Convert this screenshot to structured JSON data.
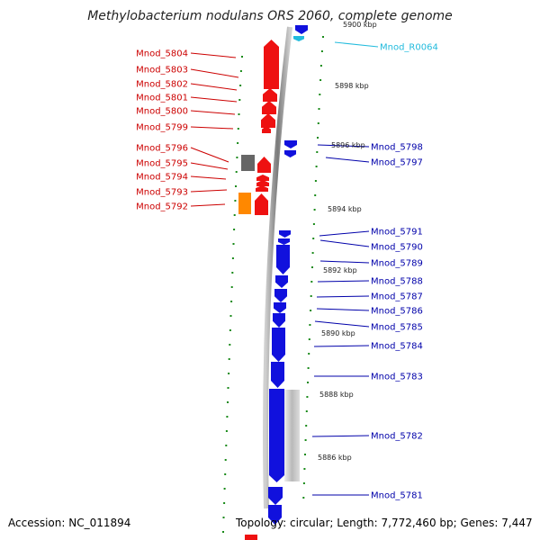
{
  "title": "Methylobacterium nodulans ORS 2060, complete genome",
  "footer": {
    "accession": "Accession: NC_011894",
    "topology": "Topology: circular; Length: 7,772,460 bp; Genes: 7,447"
  },
  "ticks": [
    {
      "label": "5900 kbp"
    },
    {
      "label": "5898 kbp"
    },
    {
      "label": "5896 kbp"
    },
    {
      "label": "5894 kbp"
    },
    {
      "label": "5892 kbp"
    },
    {
      "label": "5890 kbp"
    },
    {
      "label": "5888 kbp"
    },
    {
      "label": "5886 kbp"
    }
  ],
  "left_genes": [
    {
      "name": "Mnod_5804"
    },
    {
      "name": "Mnod_5803"
    },
    {
      "name": "Mnod_5802"
    },
    {
      "name": "Mnod_5801"
    },
    {
      "name": "Mnod_5800"
    },
    {
      "name": "Mnod_5799"
    },
    {
      "name": "Mnod_5796"
    },
    {
      "name": "Mnod_5795"
    },
    {
      "name": "Mnod_5794"
    },
    {
      "name": "Mnod_5793"
    },
    {
      "name": "Mnod_5792"
    }
  ],
  "right_genes": [
    {
      "name": "Mnod_R0064"
    },
    {
      "name": "Mnod_5798"
    },
    {
      "name": "Mnod_5797"
    },
    {
      "name": "Mnod_5791"
    },
    {
      "name": "Mnod_5790"
    },
    {
      "name": "Mnod_5789"
    },
    {
      "name": "Mnod_5788"
    },
    {
      "name": "Mnod_5787"
    },
    {
      "name": "Mnod_5786"
    },
    {
      "name": "Mnod_5785"
    },
    {
      "name": "Mnod_5784"
    },
    {
      "name": "Mnod_5783"
    },
    {
      "name": "Mnod_5782"
    },
    {
      "name": "Mnod_5781"
    }
  ],
  "colors": {
    "forward_strand": "#ee1111",
    "reverse_strand": "#1111dd",
    "rna": "#22bbdd",
    "other_feature": "#ff8800",
    "pseudo_feature": "#666666",
    "backbone": "#8a8a8a",
    "dots": "#1a8a1a",
    "left_label": "#cc0000",
    "right_label": "#0000aa"
  }
}
